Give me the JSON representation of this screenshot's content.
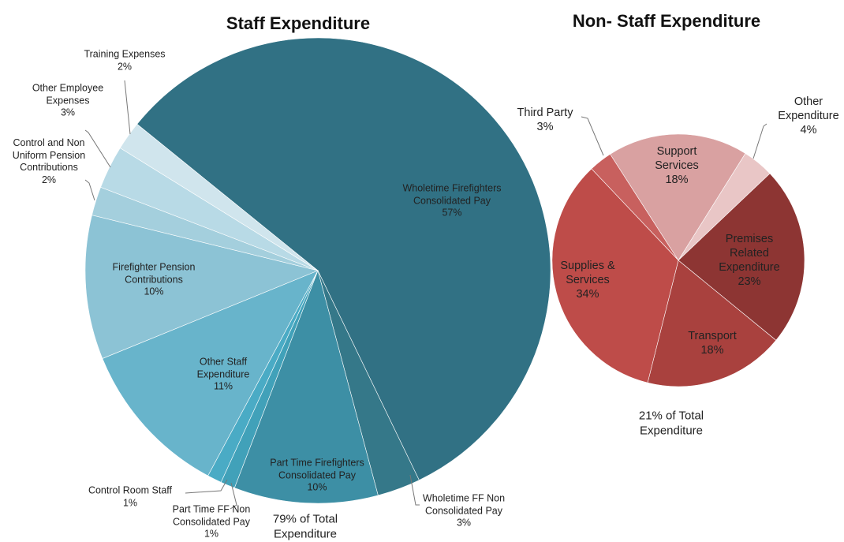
{
  "chart_data": [
    {
      "type": "pie",
      "title": "Staff Expenditure",
      "categories": [
        "Wholetime Firefighters Consolidated Pay",
        "Wholetime FF Non Consolidated Pay",
        "Part Time Firefighters Consolidated Pay",
        "Part Time FF Non Consolidated Pay",
        "Control Room Staff",
        "Other Staff Expenditure",
        "Firefighter Pension Contributions",
        "Control and Non Uniform Pension Contributions",
        "Other Employee Expenses",
        "Training Expenses"
      ],
      "values": [
        57,
        3,
        10,
        1,
        1,
        11,
        10,
        2,
        3,
        2
      ],
      "value_labels": [
        "57%",
        "3%",
        "10%",
        "1%",
        "1%",
        "11%",
        "10%",
        "2%",
        "3%",
        "2%"
      ],
      "colors": [
        "#317184",
        "#357889",
        "#3d8fa5",
        "#41a1b9",
        "#4aabc5",
        "#68b4cb",
        "#8cc3d5",
        "#a4cfdd",
        "#b8dae6",
        "#d0e5ed"
      ],
      "annotation": "79% of Total Expenditure"
    },
    {
      "type": "pie",
      "title": "Non- Staff Expenditure",
      "categories": [
        "Third Party",
        "Support Services",
        "Other Expenditure",
        "Premises Related Expenditure",
        "Transport",
        "Supplies & Services"
      ],
      "values": [
        3,
        18,
        4,
        23,
        18,
        34
      ],
      "value_labels": [
        "3%",
        "18%",
        "4%",
        "23%",
        "18%",
        "34%"
      ],
      "colors": [
        "#c8605e",
        "#d9a1a1",
        "#e9c6c6",
        "#8d3533",
        "#a9413e",
        "#be4c49"
      ],
      "annotation": "21% of Total Expenditure"
    }
  ]
}
